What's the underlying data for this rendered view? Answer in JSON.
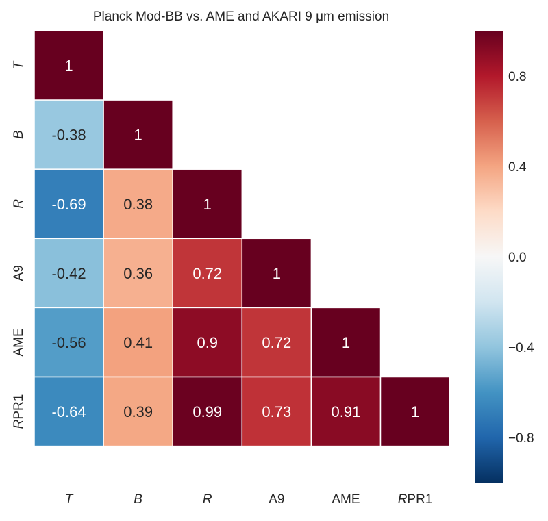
{
  "chart_data": {
    "type": "heatmap",
    "title": "Planck Mod-BB vs. AME and AKARI 9 μm emission",
    "row_labels": [
      "T",
      "B",
      "R",
      "A9",
      "AME",
      "RPR1"
    ],
    "col_labels": [
      "T",
      "B",
      "R",
      "A9",
      "AME",
      "RPR1"
    ],
    "italic_labels": [
      "T",
      "B",
      "R"
    ],
    "matrix": [
      [
        1
      ],
      [
        -0.38,
        1
      ],
      [
        -0.69,
        0.38,
        1
      ],
      [
        -0.42,
        0.36,
        0.72,
        1
      ],
      [
        -0.56,
        0.41,
        0.9,
        0.72,
        1
      ],
      [
        -0.64,
        0.39,
        0.99,
        0.73,
        0.91,
        1
      ]
    ],
    "cell_labels": [
      [
        "1"
      ],
      [
        "-0.38",
        "1"
      ],
      [
        "-0.69",
        "0.38",
        "1"
      ],
      [
        "-0.42",
        "0.36",
        "0.72",
        "1"
      ],
      [
        "-0.56",
        "0.41",
        "0.9",
        "0.72",
        "1"
      ],
      [
        "-0.64",
        "0.39",
        "0.99",
        "0.73",
        "0.91",
        "1"
      ]
    ],
    "masked": "upper triangle",
    "vmin": -1,
    "vmax": 1,
    "colormap": "RdBu_r",
    "colorbar_ticks": [
      0.8,
      0.4,
      0.0,
      -0.4,
      -0.8
    ],
    "colorbar_tick_labels": [
      "0.8",
      "0.4",
      "0.0",
      "−0.4",
      "−0.8"
    ],
    "grid": false
  }
}
